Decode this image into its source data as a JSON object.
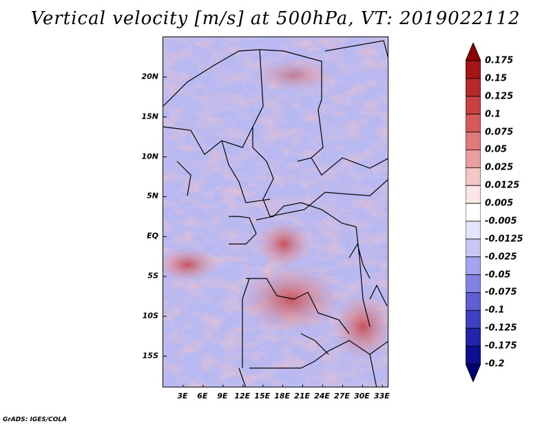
{
  "title": "Vertical velocity [m/s] at 500hPa, VT: 2019022112",
  "footer": "GrADS: IGES/COLA",
  "map": {
    "lon_range": [
      0,
      34
    ],
    "lat_range": [
      -19,
      25
    ],
    "y_axis_labels": [
      {
        "lat": 20,
        "text": "20N"
      },
      {
        "lat": 15,
        "text": "15N"
      },
      {
        "lat": 10,
        "text": "10N"
      },
      {
        "lat": 5,
        "text": "5N"
      },
      {
        "lat": 0,
        "text": "EQ"
      },
      {
        "lat": -5,
        "text": "5S"
      },
      {
        "lat": -10,
        "text": "10S"
      },
      {
        "lat": -15,
        "text": "15S"
      }
    ],
    "x_axis_labels": [
      {
        "lon": 3,
        "text": "3E"
      },
      {
        "lon": 6,
        "text": "6E"
      },
      {
        "lon": 9,
        "text": "9E"
      },
      {
        "lon": 12,
        "text": "12E"
      },
      {
        "lon": 15,
        "text": "15E"
      },
      {
        "lon": 18,
        "text": "18E"
      },
      {
        "lon": 21,
        "text": "21E"
      },
      {
        "lon": 24,
        "text": "24E"
      },
      {
        "lon": 27,
        "text": "27E"
      },
      {
        "lon": 30,
        "text": "30E"
      },
      {
        "lon": 33,
        "text": "33E"
      }
    ]
  },
  "colorbar": {
    "labels": [
      "0.175",
      "0.15",
      "0.125",
      "0.1",
      "0.075",
      "0.05",
      "0.025",
      "0.0125",
      "0.005",
      "-0.005",
      "-0.0125",
      "-0.025",
      "-0.05",
      "-0.075",
      "-0.1",
      "-0.125",
      "-0.175",
      "-0.2"
    ],
    "colors": [
      "#8b0000",
      "#a51515",
      "#b82a2a",
      "#c94040",
      "#d65a5a",
      "#e07a7a",
      "#eb9e9e",
      "#f5c6c6",
      "#fbe6e6",
      "#ffffff",
      "#e4e4fb",
      "#c6c6f5",
      "#a4a4ee",
      "#8282e2",
      "#5f5fd4",
      "#4040c2",
      "#2323ab",
      "#0e0e90",
      "#000070"
    ]
  }
}
